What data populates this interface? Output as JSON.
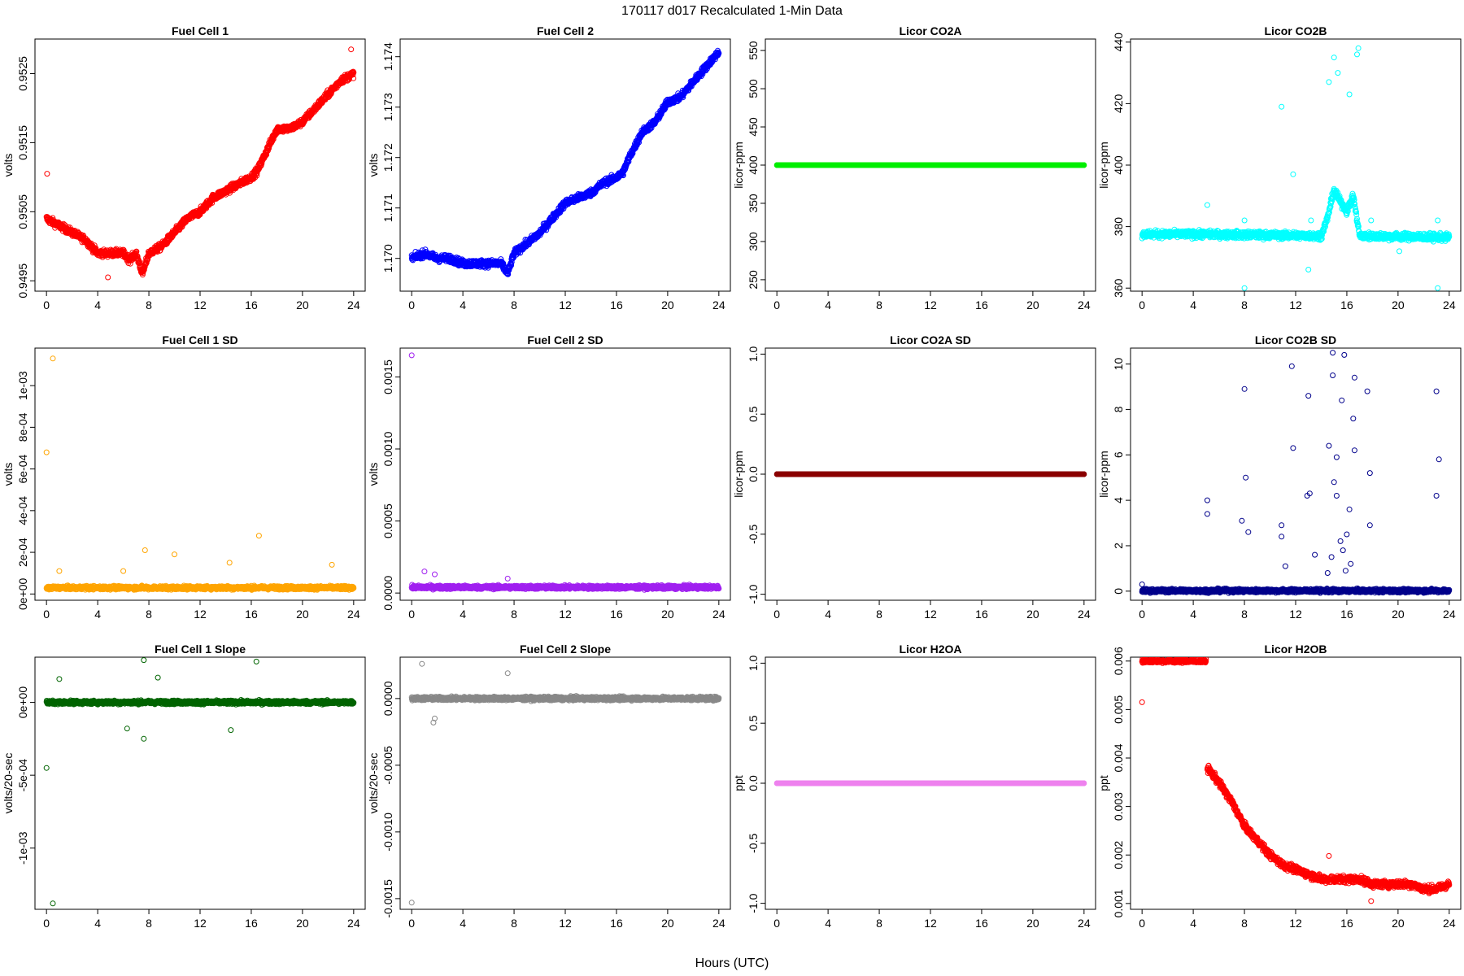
{
  "figure": {
    "title": "170117   d017   Recalculated 1-Min Data",
    "xlabel": "Hours (UTC)"
  },
  "chart_data": [
    {
      "type": "scatter",
      "title": "Fuel Cell 1",
      "ylabel": "volts",
      "color": "#ff0000",
      "xlim": [
        0,
        24
      ],
      "ylim": [
        0.94935,
        0.953
      ],
      "xticks": [
        0,
        4,
        8,
        12,
        16,
        20,
        24
      ],
      "yticks": [
        0.9495,
        0.9505,
        0.9515,
        0.9525
      ],
      "ytick_labels": [
        "0.9495",
        "0.9505",
        "0.9515",
        "0.9525"
      ],
      "series": [
        {
          "x": [
            0,
            1,
            2,
            3,
            4,
            5,
            6,
            6.5,
            7,
            7.5,
            8,
            9,
            10,
            11,
            12,
            13,
            14,
            15,
            16,
            16.5,
            17,
            17.5,
            18,
            19,
            20,
            21,
            22,
            23,
            24
          ],
          "values": [
            0.9504,
            0.9503,
            0.9502,
            0.9501,
            0.9499,
            0.9499,
            0.9499,
            0.9498,
            0.9499,
            0.9496,
            0.9499,
            0.95,
            0.9502,
            0.9504,
            0.9505,
            0.9507,
            0.9508,
            0.9509,
            0.951,
            0.9511,
            0.9513,
            0.9515,
            0.9517,
            0.9517,
            0.9518,
            0.952,
            0.9522,
            0.9524,
            0.9525
          ]
        }
      ],
      "outliers": [
        {
          "x": 0.05,
          "y": 0.95105
        },
        {
          "x": 23.8,
          "y": 0.95285
        },
        {
          "x": 4.8,
          "y": 0.94955
        }
      ]
    },
    {
      "type": "scatter",
      "title": "Fuel Cell 2",
      "ylabel": "volts",
      "color": "#0000ff",
      "xlim": [
        0,
        24
      ],
      "ylim": [
        1.16935,
        1.17435
      ],
      "xticks": [
        0,
        4,
        8,
        12,
        16,
        20,
        24
      ],
      "yticks": [
        1.17,
        1.171,
        1.172,
        1.173,
        1.174
      ],
      "ytick_labels": [
        "1.170",
        "1.171",
        "1.172",
        "1.173",
        "1.174"
      ],
      "series": [
        {
          "x": [
            0,
            1,
            2,
            3,
            4,
            5,
            6,
            7,
            7.5,
            8,
            9,
            10,
            11,
            12,
            13,
            14,
            15,
            16,
            16.5,
            17,
            18,
            19,
            20,
            21,
            22,
            23,
            24
          ],
          "values": [
            1.17,
            1.1701,
            1.17,
            1.17,
            1.1699,
            1.1699,
            1.1699,
            1.1699,
            1.1697,
            1.1701,
            1.1703,
            1.1705,
            1.1708,
            1.1711,
            1.1712,
            1.1713,
            1.1715,
            1.1716,
            1.1717,
            1.172,
            1.1725,
            1.1727,
            1.1731,
            1.1732,
            1.1735,
            1.1738,
            1.1741
          ]
        }
      ],
      "outliers": []
    },
    {
      "type": "scatter",
      "title": "Licor CO2A",
      "ylabel": "licor-ppm",
      "color": "#00ee00",
      "xlim": [
        0,
        24
      ],
      "ylim": [
        235,
        565
      ],
      "xticks": [
        0,
        4,
        8,
        12,
        16,
        20,
        24
      ],
      "yticks": [
        250,
        300,
        350,
        400,
        450,
        500,
        550
      ],
      "ytick_labels": [
        "250",
        "300",
        "350",
        "400",
        "450",
        "500",
        "550"
      ],
      "series": [
        {
          "x": [
            0,
            24
          ],
          "values": [
            400,
            400
          ]
        }
      ],
      "outliers": []
    },
    {
      "type": "scatter",
      "title": "Licor CO2B",
      "ylabel": "licor-ppm",
      "color": "#00ffff",
      "xlim": [
        0,
        24
      ],
      "ylim": [
        359,
        441
      ],
      "xticks": [
        0,
        4,
        8,
        12,
        16,
        20,
        24
      ],
      "yticks": [
        360,
        380,
        400,
        420,
        440
      ],
      "ytick_labels": [
        "360",
        "380",
        "400",
        "420",
        "440"
      ],
      "series": [
        {
          "x": [
            0,
            5,
            14,
            14.5,
            15,
            15.5,
            16,
            16.5,
            17,
            24
          ],
          "values": [
            377.5,
            377.5,
            377,
            383,
            392,
            388,
            385,
            390,
            377,
            376.5
          ]
        }
      ],
      "outliers": [
        {
          "x": 5.1,
          "y": 387
        },
        {
          "x": 8,
          "y": 382
        },
        {
          "x": 8,
          "y": 360
        },
        {
          "x": 10.9,
          "y": 419
        },
        {
          "x": 11.8,
          "y": 397
        },
        {
          "x": 13,
          "y": 366
        },
        {
          "x": 13.2,
          "y": 382
        },
        {
          "x": 14.6,
          "y": 427
        },
        {
          "x": 15,
          "y": 435
        },
        {
          "x": 15.3,
          "y": 430
        },
        {
          "x": 16.2,
          "y": 423
        },
        {
          "x": 16.9,
          "y": 438
        },
        {
          "x": 16.8,
          "y": 436
        },
        {
          "x": 17.9,
          "y": 382
        },
        {
          "x": 23.1,
          "y": 382
        },
        {
          "x": 23.1,
          "y": 360
        },
        {
          "x": 20.1,
          "y": 372
        }
      ]
    },
    {
      "type": "scatter",
      "title": "Fuel Cell 1 SD",
      "ylabel": "volts",
      "color": "#ffa500",
      "xlim": [
        0,
        24
      ],
      "ylim": [
        -3e-05,
        0.00118
      ],
      "xticks": [
        0,
        4,
        8,
        12,
        16,
        20,
        24
      ],
      "yticks": [
        0,
        0.0002,
        0.0004,
        0.0006,
        0.0008,
        0.001
      ],
      "ytick_labels": [
        "0e+00",
        "2e-04",
        "4e-04",
        "6e-04",
        "8e-04",
        "1e-03"
      ],
      "series": [
        {
          "x": [
            0,
            24
          ],
          "values": [
            3e-05,
            3e-05
          ]
        }
      ],
      "outliers": [
        {
          "x": 0,
          "y": 0.00068
        },
        {
          "x": 0.5,
          "y": 0.00113
        },
        {
          "x": 7.7,
          "y": 0.00021
        },
        {
          "x": 10,
          "y": 0.00019
        },
        {
          "x": 16.6,
          "y": 0.00028
        },
        {
          "x": 14.3,
          "y": 0.00015
        },
        {
          "x": 22.3,
          "y": 0.00014
        },
        {
          "x": 1,
          "y": 0.00011
        },
        {
          "x": 6,
          "y": 0.00011
        }
      ]
    },
    {
      "type": "scatter",
      "title": "Fuel Cell 2 SD",
      "ylabel": "volts",
      "color": "#a020f0",
      "xlim": [
        0,
        24
      ],
      "ylim": [
        -5e-05,
        0.0017
      ],
      "xticks": [
        0,
        4,
        8,
        12,
        16,
        20,
        24
      ],
      "yticks": [
        0,
        0.0005,
        0.001,
        0.0015
      ],
      "ytick_labels": [
        "0.0000",
        "0.0005",
        "0.0010",
        "0.0015"
      ],
      "series": [
        {
          "x": [
            0,
            24
          ],
          "values": [
            4e-05,
            4e-05
          ]
        }
      ],
      "outliers": [
        {
          "x": 0,
          "y": 0.00165
        },
        {
          "x": 1,
          "y": 0.00015
        },
        {
          "x": 1.8,
          "y": 0.00013
        },
        {
          "x": 7.5,
          "y": 0.0001
        }
      ]
    },
    {
      "type": "scatter",
      "title": "Licor CO2A SD",
      "ylabel": "licor-ppm",
      "color": "#8b0000",
      "xlim": [
        0,
        24
      ],
      "ylim": [
        -1.05,
        1.05
      ],
      "xticks": [
        0,
        4,
        8,
        12,
        16,
        20,
        24
      ],
      "yticks": [
        -1,
        -0.5,
        0,
        0.5,
        1
      ],
      "ytick_labels": [
        "-1.0",
        "-0.5",
        "0.0",
        "0.5",
        "1.0"
      ],
      "series": [
        {
          "x": [
            0,
            24
          ],
          "values": [
            0,
            0
          ]
        }
      ],
      "outliers": []
    },
    {
      "type": "scatter",
      "title": "Licor CO2B SD",
      "ylabel": "licor-ppm",
      "color": "#00008b",
      "xlim": [
        0,
        24
      ],
      "ylim": [
        -0.4,
        10.7
      ],
      "xticks": [
        0,
        4,
        8,
        12,
        16,
        20,
        24
      ],
      "yticks": [
        0,
        2,
        4,
        6,
        8,
        10
      ],
      "ytick_labels": [
        "0",
        "2",
        "4",
        "6",
        "8",
        "10"
      ],
      "series": [
        {
          "x": [
            0,
            24
          ],
          "values": [
            0.02,
            0.02
          ]
        }
      ],
      "outliers": [
        {
          "x": 0,
          "y": 0.3
        },
        {
          "x": 5.1,
          "y": 4
        },
        {
          "x": 5.1,
          "y": 3.4
        },
        {
          "x": 7.8,
          "y": 3.1
        },
        {
          "x": 8,
          "y": 8.9
        },
        {
          "x": 8.1,
          "y": 5
        },
        {
          "x": 8.3,
          "y": 2.6
        },
        {
          "x": 10.9,
          "y": 2.9
        },
        {
          "x": 10.9,
          "y": 2.4
        },
        {
          "x": 11.7,
          "y": 9.9
        },
        {
          "x": 11.8,
          "y": 6.3
        },
        {
          "x": 13,
          "y": 8.6
        },
        {
          "x": 12.9,
          "y": 4.2
        },
        {
          "x": 13.1,
          "y": 4.3
        },
        {
          "x": 14.6,
          "y": 6.4
        },
        {
          "x": 14.9,
          "y": 10.5
        },
        {
          "x": 14.9,
          "y": 9.5
        },
        {
          "x": 15.2,
          "y": 5.9
        },
        {
          "x": 15.6,
          "y": 8.4
        },
        {
          "x": 15.8,
          "y": 10.4
        },
        {
          "x": 16.5,
          "y": 7.6
        },
        {
          "x": 16.6,
          "y": 6.2
        },
        {
          "x": 16.6,
          "y": 9.4
        },
        {
          "x": 17.6,
          "y": 8.8
        },
        {
          "x": 17.8,
          "y": 5.2
        },
        {
          "x": 17.8,
          "y": 2.9
        },
        {
          "x": 23,
          "y": 8.8
        },
        {
          "x": 23,
          "y": 4.2
        },
        {
          "x": 23.2,
          "y": 5.8
        },
        {
          "x": 15,
          "y": 4.8
        },
        {
          "x": 15.2,
          "y": 4.2
        },
        {
          "x": 16.2,
          "y": 3.6
        },
        {
          "x": 15.5,
          "y": 2.2
        },
        {
          "x": 16,
          "y": 2.5
        },
        {
          "x": 14.8,
          "y": 1.5
        },
        {
          "x": 15.7,
          "y": 1.8
        },
        {
          "x": 16.3,
          "y": 1.2
        },
        {
          "x": 15.9,
          "y": 0.9
        },
        {
          "x": 14.5,
          "y": 0.8
        },
        {
          "x": 13.5,
          "y": 1.6
        },
        {
          "x": 11.2,
          "y": 1.1
        }
      ]
    },
    {
      "type": "scatter",
      "title": "Fuel Cell 1 Slope",
      "ylabel": "volts/20-sec",
      "color": "#006400",
      "xlim": [
        0,
        24
      ],
      "ylim": [
        -0.00142,
        0.00031
      ],
      "xticks": [
        0,
        4,
        8,
        12,
        16,
        20,
        24
      ],
      "yticks": [
        0,
        -0.0005,
        -0.001
      ],
      "ytick_labels": [
        "0e+00",
        "-5e-04",
        "-1e-03"
      ],
      "series": [
        {
          "x": [
            0,
            24
          ],
          "values": [
            0,
            0
          ]
        }
      ],
      "outliers": [
        {
          "x": 0,
          "y": -0.00045
        },
        {
          "x": 0.5,
          "y": -0.00138
        },
        {
          "x": 7.6,
          "y": 0.00029
        },
        {
          "x": 16.4,
          "y": 0.00028
        },
        {
          "x": 7.6,
          "y": -0.00025
        },
        {
          "x": 14.4,
          "y": -0.00019
        },
        {
          "x": 6.3,
          "y": -0.00018
        },
        {
          "x": 1,
          "y": 0.00016
        },
        {
          "x": 8.7,
          "y": 0.00017
        }
      ]
    },
    {
      "type": "scatter",
      "title": "Fuel Cell 2 Slope",
      "ylabel": "volts/20-sec",
      "color": "#888888",
      "xlim": [
        0,
        24
      ],
      "ylim": [
        -0.00158,
        0.00031
      ],
      "xticks": [
        0,
        4,
        8,
        12,
        16,
        20,
        24
      ],
      "yticks": [
        0,
        -0.0005,
        -0.001,
        -0.0015
      ],
      "ytick_labels": [
        "0.0000",
        "-0.0005",
        "-0.0010",
        "-0.0015"
      ],
      "series": [
        {
          "x": [
            0,
            24
          ],
          "values": [
            0,
            0
          ]
        }
      ],
      "outliers": [
        {
          "x": 0,
          "y": -0.00153
        },
        {
          "x": 0.8,
          "y": 0.00026
        },
        {
          "x": 7.5,
          "y": 0.00019
        },
        {
          "x": 1.8,
          "y": -0.00015
        },
        {
          "x": 1.7,
          "y": -0.00018
        }
      ]
    },
    {
      "type": "scatter",
      "title": "Licor H2OA",
      "ylabel": "ppt",
      "color": "#ee82ee",
      "xlim": [
        0,
        24
      ],
      "ylim": [
        -1.05,
        1.05
      ],
      "xticks": [
        0,
        4,
        8,
        12,
        16,
        20,
        24
      ],
      "yticks": [
        -1,
        -0.5,
        0,
        0.5,
        1
      ],
      "ytick_labels": [
        "-1.0",
        "-0.5",
        "0.0",
        "0.5",
        "1.0"
      ],
      "series": [
        {
          "x": [
            0,
            24
          ],
          "values": [
            0,
            0
          ]
        }
      ],
      "outliers": []
    },
    {
      "type": "scatter",
      "title": "Licor H2OB",
      "ylabel": "ppt",
      "color": "#ff0000",
      "xlim": [
        0,
        24
      ],
      "ylim": [
        0.00088,
        0.00608
      ],
      "xticks": [
        0,
        4,
        8,
        12,
        16,
        20,
        24
      ],
      "yticks": [
        0.001,
        0.002,
        0.003,
        0.004,
        0.005,
        0.006
      ],
      "ytick_labels": [
        "0.001",
        "0.002",
        "0.003",
        "0.004",
        "0.005",
        "0.006"
      ],
      "series": [
        {
          "x": [
            0,
            5
          ],
          "values": [
            0.006,
            0.006
          ]
        },
        {
          "x": [
            5.1,
            6,
            7,
            8,
            9,
            10,
            11,
            12,
            13,
            14,
            15,
            16,
            17,
            18,
            19,
            20,
            21,
            22,
            23,
            24
          ],
          "values": [
            0.0038,
            0.0035,
            0.0031,
            0.0026,
            0.0023,
            0.002,
            0.0018,
            0.0017,
            0.0016,
            0.0015,
            0.0015,
            0.0015,
            0.0015,
            0.0014,
            0.0014,
            0.0014,
            0.0014,
            0.0013,
            0.0013,
            0.0014
          ]
        }
      ],
      "outliers": [
        {
          "x": 0,
          "y": 0.00515
        },
        {
          "x": 17.9,
          "y": 0.00105
        },
        {
          "x": 14.6,
          "y": 0.00198
        }
      ]
    }
  ]
}
